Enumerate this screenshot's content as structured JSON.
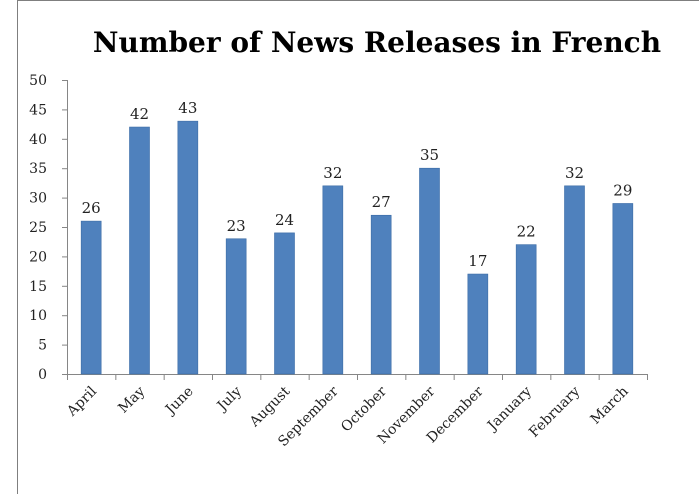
{
  "chart_data": {
    "type": "bar",
    "title": "Number of News Releases in French",
    "xlabel": "",
    "ylabel": "",
    "categories": [
      "April",
      "May",
      "June",
      "July",
      "August",
      "September",
      "October",
      "November",
      "December",
      "January",
      "February",
      "March"
    ],
    "series": [
      {
        "values": [
          26,
          42,
          43,
          23,
          24,
          32,
          27,
          35,
          17,
          22,
          32,
          29
        ]
      }
    ],
    "data_labels": [
      "26",
      "42",
      "43",
      "23",
      "24",
      "32",
      "27",
      "35",
      "17",
      "22",
      "32",
      "29"
    ],
    "ylim": [
      0,
      50
    ],
    "y_ticks": [
      "0",
      "5",
      "10",
      "15",
      "20",
      "25",
      "30",
      "35",
      "40",
      "45",
      "50"
    ],
    "grid": false,
    "legend": "none",
    "colors": {
      "bar": "#4F81BD",
      "bar_edge": "#3A6BA5",
      "axis": "#868686",
      "frame": "#7f7f7f"
    }
  }
}
